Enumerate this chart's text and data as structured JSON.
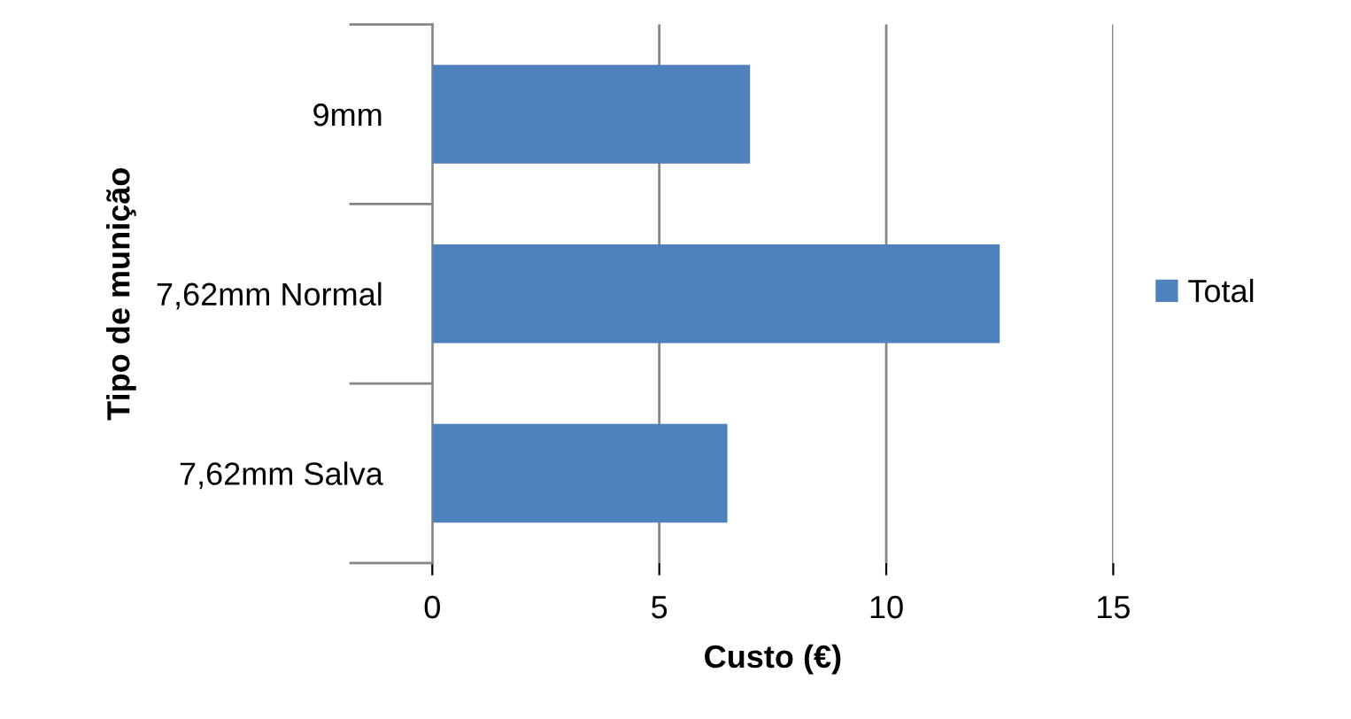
{
  "chart_data": {
    "type": "bar",
    "orientation": "horizontal",
    "categories": [
      "9mm",
      "7,62mm Normal",
      "7,62mm Salva"
    ],
    "series": [
      {
        "name": "Total",
        "color": "#4f81bd",
        "values": [
          7,
          12.5,
          6.5
        ]
      }
    ],
    "xlabel": "Custo (€)",
    "ylabel": "Tipo de munição",
    "xlim": [
      0,
      15
    ],
    "xticks": [
      0,
      5,
      10,
      15
    ],
    "grid": "x",
    "legend": "right"
  }
}
